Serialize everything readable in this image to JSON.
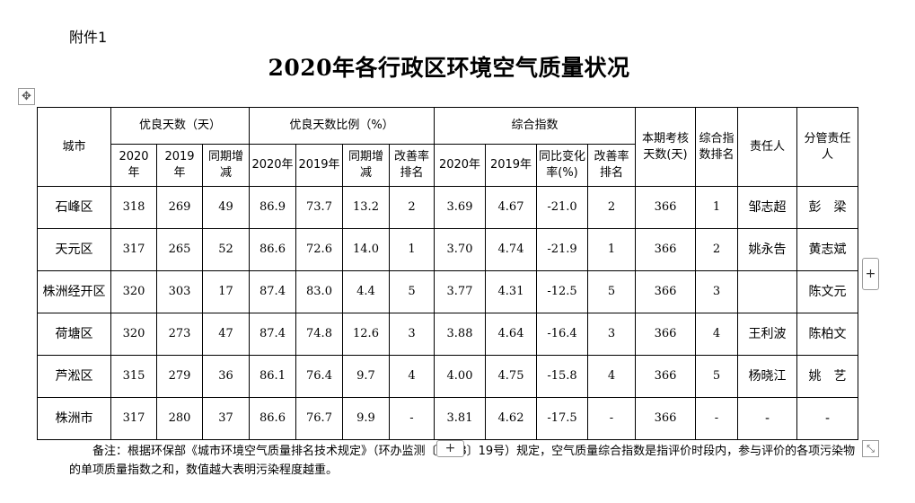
{
  "attachment_label": "附件1",
  "title": "2020年各行政区环境空气质量状况",
  "controls": {
    "move": "✥",
    "add_row": "+",
    "add_col": "+",
    "resize": "⤡"
  },
  "table": {
    "header": {
      "city": "城市",
      "good_days": "优良天数（天）",
      "good_ratio": "优良天数比例（%）",
      "composite": "综合指数",
      "assess_days": "本期考核天数(天)",
      "composite_rank": "综合指数排名",
      "responsible": "责任人",
      "supervisor": "分管责任人"
    },
    "subheader": {
      "y2020": "2020年",
      "y2019": "2019年",
      "yoy_change": "同期增减",
      "improve_rank": "改善率排名",
      "yoy_rate": "同比变化率(%)"
    },
    "rows": [
      {
        "city": "石峰区",
        "gd2020": "318",
        "gd2019": "269",
        "gd_chg": "49",
        "gr2020": "86.9",
        "gr2019": "73.7",
        "gr_chg": "13.2",
        "gr_rank": "2",
        "ci2020": "3.69",
        "ci2019": "4.67",
        "ci_rate": "-21.0",
        "ci_rank": "2",
        "days": "366",
        "rank": "1",
        "resp": "邹志超",
        "sup": "彭　梁"
      },
      {
        "city": "天元区",
        "gd2020": "317",
        "gd2019": "265",
        "gd_chg": "52",
        "gr2020": "86.6",
        "gr2019": "72.6",
        "gr_chg": "14.0",
        "gr_rank": "1",
        "ci2020": "3.70",
        "ci2019": "4.74",
        "ci_rate": "-21.9",
        "ci_rank": "1",
        "days": "366",
        "rank": "2",
        "resp": "姚永告",
        "sup": "黄志斌"
      },
      {
        "city": "株洲经开区",
        "gd2020": "320",
        "gd2019": "303",
        "gd_chg": "17",
        "gr2020": "87.4",
        "gr2019": "83.0",
        "gr_chg": "4.4",
        "gr_rank": "5",
        "ci2020": "3.77",
        "ci2019": "4.31",
        "ci_rate": "-12.5",
        "ci_rank": "5",
        "days": "366",
        "rank": "3",
        "resp": "",
        "sup": "陈文元"
      },
      {
        "city": "荷塘区",
        "gd2020": "320",
        "gd2019": "273",
        "gd_chg": "47",
        "gr2020": "87.4",
        "gr2019": "74.8",
        "gr_chg": "12.6",
        "gr_rank": "3",
        "ci2020": "3.88",
        "ci2019": "4.64",
        "ci_rate": "-16.4",
        "ci_rank": "3",
        "days": "366",
        "rank": "4",
        "resp": "王利波",
        "sup": "陈柏文"
      },
      {
        "city": "芦淞区",
        "gd2020": "315",
        "gd2019": "279",
        "gd_chg": "36",
        "gr2020": "86.1",
        "gr2019": "76.4",
        "gr_chg": "9.7",
        "gr_rank": "4",
        "ci2020": "4.00",
        "ci2019": "4.75",
        "ci_rate": "-15.8",
        "ci_rank": "4",
        "days": "366",
        "rank": "5",
        "resp": "杨晓江",
        "sup": "姚　艺"
      },
      {
        "city": "株洲市",
        "gd2020": "317",
        "gd2019": "280",
        "gd_chg": "37",
        "gr2020": "86.6",
        "gr2019": "76.7",
        "gr_chg": "9.9",
        "gr_rank": "-",
        "ci2020": "3.81",
        "ci2019": "4.62",
        "ci_rate": "-17.5",
        "ci_rank": "-",
        "days": "366",
        "rank": "-",
        "resp": "-",
        "sup": "-"
      }
    ]
  },
  "note": "备注：根据环保部《城市环境空气质量排名技术规定》（环办监测〔2018〕19号）规定，空气质量综合指数是指评价时段内，参与评价的各项污染物的单项质量指数之和，数值越大表明污染程度越重。"
}
